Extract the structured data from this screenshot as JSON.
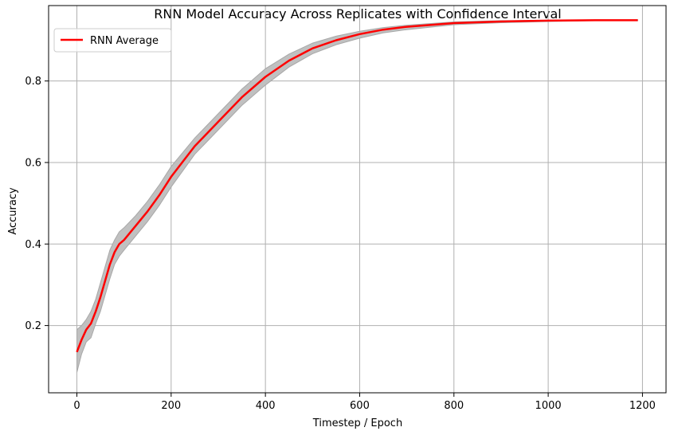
{
  "chart_data": {
    "type": "line",
    "title": "RNN Model Accuracy Across Replicates with Confidence Interval",
    "xlabel": "Timestep / Epoch",
    "ylabel": "Accuracy",
    "xlim": [
      -60,
      1250
    ],
    "ylim": [
      0.035,
      0.985
    ],
    "xticks": [
      0,
      200,
      400,
      600,
      800,
      1000,
      1200
    ],
    "xtick_labels": [
      "0",
      "200",
      "400",
      "600",
      "800",
      "1000",
      "1200"
    ],
    "yticks": [
      0.2,
      0.4,
      0.6,
      0.8
    ],
    "ytick_labels": [
      "0.2",
      "0.4",
      "0.6",
      "0.8"
    ],
    "grid": true,
    "legend_position": "top-left",
    "series": [
      {
        "name": "RNN Average",
        "color": "#ff0000",
        "x": [
          0,
          10,
          20,
          30,
          40,
          50,
          60,
          70,
          80,
          90,
          100,
          125,
          150,
          175,
          200,
          250,
          300,
          350,
          400,
          450,
          500,
          550,
          600,
          650,
          700,
          800,
          900,
          1000,
          1100,
          1190
        ],
        "y": [
          0.135,
          0.165,
          0.19,
          0.205,
          0.235,
          0.27,
          0.31,
          0.35,
          0.38,
          0.4,
          0.41,
          0.445,
          0.48,
          0.52,
          0.565,
          0.64,
          0.7,
          0.76,
          0.81,
          0.85,
          0.88,
          0.9,
          0.915,
          0.926,
          0.933,
          0.942,
          0.946,
          0.948,
          0.949,
          0.949
        ]
      }
    ],
    "confidence_band": {
      "color": "#c0c0c0",
      "upper": [
        0.19,
        0.2,
        0.215,
        0.235,
        0.265,
        0.305,
        0.345,
        0.385,
        0.41,
        0.43,
        0.44,
        0.47,
        0.505,
        0.545,
        0.59,
        0.66,
        0.72,
        0.78,
        0.83,
        0.866,
        0.893,
        0.91,
        0.922,
        0.931,
        0.937,
        0.945,
        0.948,
        0.949,
        0.95,
        0.95
      ],
      "lower": [
        0.085,
        0.13,
        0.16,
        0.17,
        0.205,
        0.235,
        0.275,
        0.315,
        0.35,
        0.37,
        0.385,
        0.42,
        0.455,
        0.495,
        0.54,
        0.62,
        0.68,
        0.74,
        0.79,
        0.834,
        0.867,
        0.889,
        0.905,
        0.918,
        0.926,
        0.938,
        0.943,
        0.946,
        0.948,
        0.948
      ]
    }
  }
}
